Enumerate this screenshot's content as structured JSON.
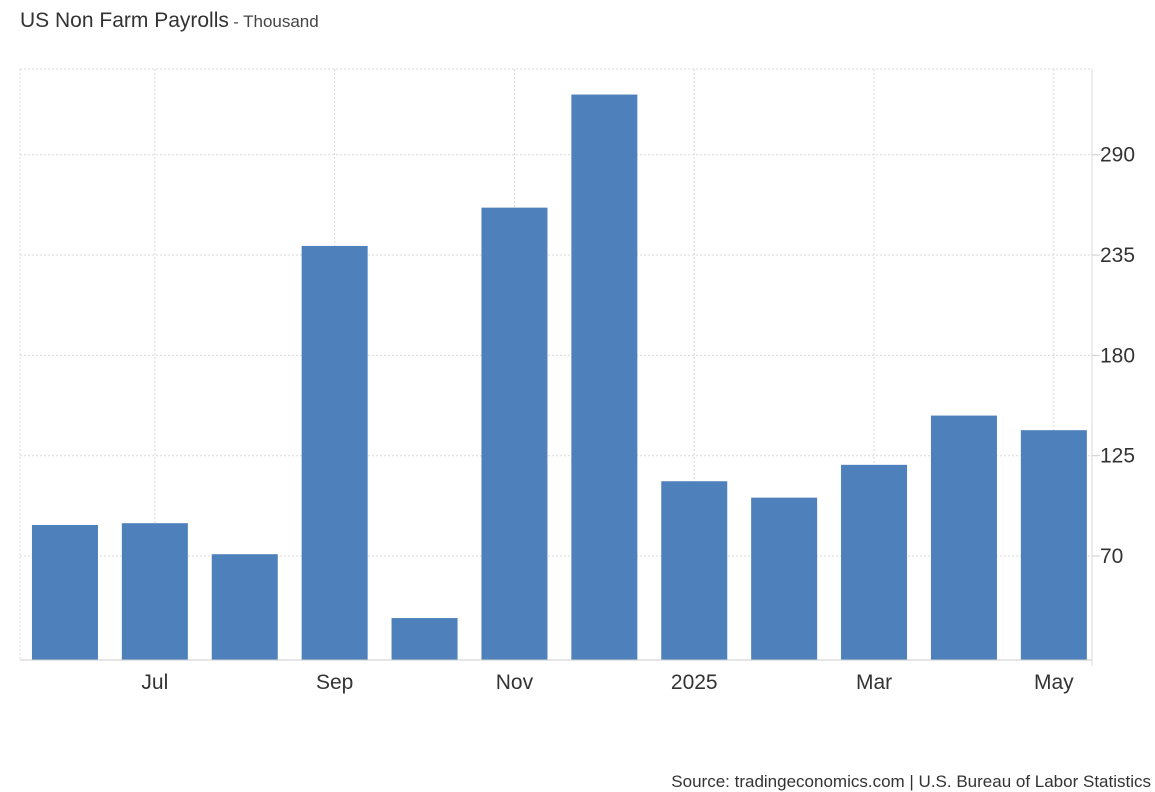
{
  "chart_data": {
    "type": "bar",
    "title": "US Non Farm Payrolls",
    "subtitle": "Thousand",
    "categories": [
      "2024-06",
      "2024-07",
      "2024-08",
      "2024-09",
      "2024-10",
      "2024-11",
      "2024-12",
      "2025-01",
      "2025-02",
      "2025-03",
      "2025-04",
      "2025-05"
    ],
    "values": [
      87,
      88,
      71,
      240,
      36,
      261,
      323,
      111,
      102,
      120,
      147,
      139
    ],
    "x_tick_labels": [
      "Jul",
      "Sep",
      "Nov",
      "2025",
      "Mar",
      "May"
    ],
    "y_ticks": [
      70,
      125,
      180,
      235,
      290
    ],
    "ylim": [
      13,
      337
    ],
    "y_axis_position": "right",
    "grid": true,
    "legend": "none",
    "bar_color": "#4e80bc",
    "grid_color": "#d9d9d9",
    "xlabel": "",
    "ylabel": ""
  },
  "footer": {
    "source": "Source: tradingeconomics.com | U.S. Bureau of Labor Statistics"
  }
}
